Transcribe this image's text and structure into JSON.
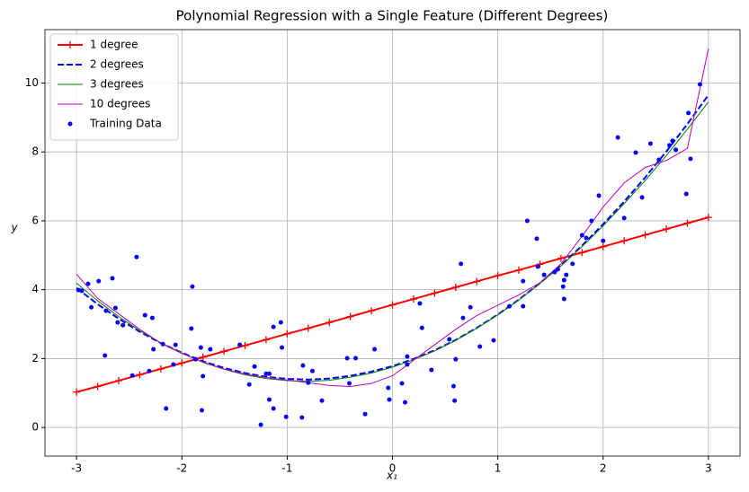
{
  "chart_data": {
    "type": "line",
    "title": "Polynomial Regression with a Single Feature (Different Degrees)",
    "x_label": "x₁",
    "y_label": "y",
    "xlim": [
      -3.3,
      3.3
    ],
    "ylim": [
      -0.83,
      11.55
    ],
    "xticks": [
      -3,
      -2,
      -1,
      0,
      1,
      2,
      3
    ],
    "yticks": [
      0,
      2,
      4,
      6,
      8,
      10
    ],
    "grid": true,
    "legend": "upper left",
    "x": [
      -3,
      -2.8,
      -2.6,
      -2.4,
      -2.2,
      -2,
      -1.8,
      -1.6,
      -1.4,
      -1.2,
      -1,
      -0.8,
      -0.6,
      -0.4,
      -0.2,
      0,
      0.2,
      0.4,
      0.6,
      0.8,
      1,
      1.2,
      1.4,
      1.6,
      1.8,
      2,
      2.2,
      2.4,
      2.6,
      2.8,
      3
    ],
    "series": [
      {
        "name": "1 degree",
        "color": "#ff0000",
        "linestyle": "solid",
        "linewidth": 2,
        "marker": "plus",
        "values": [
          1.03,
          1.19,
          1.36,
          1.53,
          1.7,
          1.87,
          2.04,
          2.21,
          2.38,
          2.55,
          2.72,
          2.88,
          3.05,
          3.22,
          3.39,
          3.56,
          3.73,
          3.9,
          4.07,
          4.24,
          4.41,
          4.57,
          4.74,
          4.91,
          5.08,
          5.25,
          5.42,
          5.59,
          5.76,
          5.93,
          6.1
        ]
      },
      {
        "name": "2 degrees",
        "color": "#0000ff",
        "linestyle": "dashed",
        "linewidth": 2,
        "marker": "none",
        "values": [
          4.05,
          3.58,
          3.16,
          2.78,
          2.45,
          2.17,
          1.92,
          1.73,
          1.58,
          1.47,
          1.41,
          1.39,
          1.42,
          1.5,
          1.62,
          1.78,
          1.99,
          2.24,
          2.54,
          2.89,
          3.28,
          3.71,
          4.19,
          4.71,
          5.28,
          5.9,
          6.56,
          7.26,
          8.01,
          8.81,
          9.65
        ]
      },
      {
        "name": "3 degrees",
        "color": "#008000",
        "linestyle": "solid",
        "linewidth": 1,
        "marker": "none",
        "values": [
          4.19,
          3.68,
          3.22,
          2.81,
          2.46,
          2.16,
          1.89,
          1.69,
          1.53,
          1.42,
          1.36,
          1.34,
          1.37,
          1.46,
          1.58,
          1.75,
          1.97,
          2.22,
          2.53,
          2.88,
          3.27,
          3.7,
          4.18,
          4.69,
          5.25,
          5.85,
          6.5,
          7.17,
          7.89,
          8.66,
          9.45
        ]
      },
      {
        "name": "10 degrees",
        "color": "#bf00bf",
        "linestyle": "solid",
        "linewidth": 1,
        "marker": "none",
        "values": [
          4.45,
          3.75,
          3.3,
          2.85,
          2.45,
          2.15,
          1.9,
          1.7,
          1.55,
          1.45,
          1.38,
          1.3,
          1.22,
          1.19,
          1.28,
          1.5,
          1.95,
          2.4,
          2.85,
          3.25,
          3.55,
          3.85,
          4.2,
          4.75,
          5.55,
          6.4,
          7.1,
          7.55,
          7.75,
          8.1,
          11.0
        ]
      },
      {
        "name": "Training Data",
        "color": "#0000ff",
        "linestyle": "none",
        "marker": "dot",
        "x": [
          -2.98,
          -2.95,
          -2.89,
          -2.86,
          -2.79,
          -2.73,
          -2.72,
          -2.66,
          -2.63,
          -2.61,
          -2.56,
          -2.47,
          -2.43,
          -2.35,
          -2.31,
          -2.28,
          -2.27,
          -2.18,
          -2.15,
          -2.08,
          -2.06,
          -1.91,
          -1.9,
          -1.87,
          -1.82,
          -1.81,
          -1.8,
          -1.73,
          -1.45,
          -1.36,
          -1.31,
          -1.25,
          -1.2,
          -1.17,
          -1.17,
          -1.13,
          -1.13,
          -1.06,
          -1.05,
          -1.01,
          -0.86,
          -0.85,
          -0.8,
          -0.76,
          -0.67,
          -0.43,
          -0.41,
          -0.35,
          -0.26,
          -0.17,
          -0.04,
          -0.03,
          0.09,
          0.12,
          0.14,
          0.14,
          0.26,
          0.28,
          0.37,
          0.54,
          0.58,
          0.59,
          0.6,
          0.65,
          0.67,
          0.74,
          0.83,
          0.96,
          1.11,
          1.24,
          1.24,
          1.28,
          1.37,
          1.38,
          1.44,
          1.54,
          1.57,
          1.62,
          1.63,
          1.63,
          1.65,
          1.71,
          1.8,
          1.84,
          1.89,
          1.96,
          2.0,
          2.14,
          2.2,
          2.31,
          2.37,
          2.45,
          2.53,
          2.63,
          2.66,
          2.69,
          2.79,
          2.81,
          2.83,
          2.92
        ],
        "values": [
          3.99,
          3.97,
          4.17,
          3.49,
          4.25,
          2.09,
          3.39,
          4.33,
          3.47,
          3.05,
          2.97,
          1.51,
          4.95,
          3.26,
          1.64,
          3.18,
          2.27,
          2.42,
          0.55,
          1.83,
          2.4,
          2.87,
          4.09,
          1.98,
          2.32,
          0.5,
          1.49,
          2.27,
          2.4,
          1.25,
          1.77,
          0.08,
          1.56,
          0.81,
          1.56,
          0.55,
          2.92,
          3.05,
          2.32,
          0.31,
          0.29,
          1.8,
          1.3,
          1.64,
          0.78,
          2.01,
          1.28,
          2.01,
          0.39,
          2.27,
          1.15,
          0.81,
          1.28,
          0.73,
          2.06,
          1.83,
          3.6,
          2.89,
          1.67,
          2.56,
          1.2,
          0.78,
          1.98,
          4.75,
          3.18,
          3.49,
          2.35,
          2.53,
          3.52,
          4.25,
          3.52,
          6.0,
          5.48,
          4.67,
          4.43,
          4.51,
          4.59,
          4.09,
          4.28,
          3.73,
          4.43,
          4.75,
          5.58,
          5.5,
          6.0,
          6.73,
          5.42,
          8.42,
          6.08,
          7.98,
          6.68,
          8.24,
          7.77,
          8.19,
          8.32,
          8.06,
          6.78,
          9.13,
          7.8,
          9.96
        ]
      }
    ]
  }
}
